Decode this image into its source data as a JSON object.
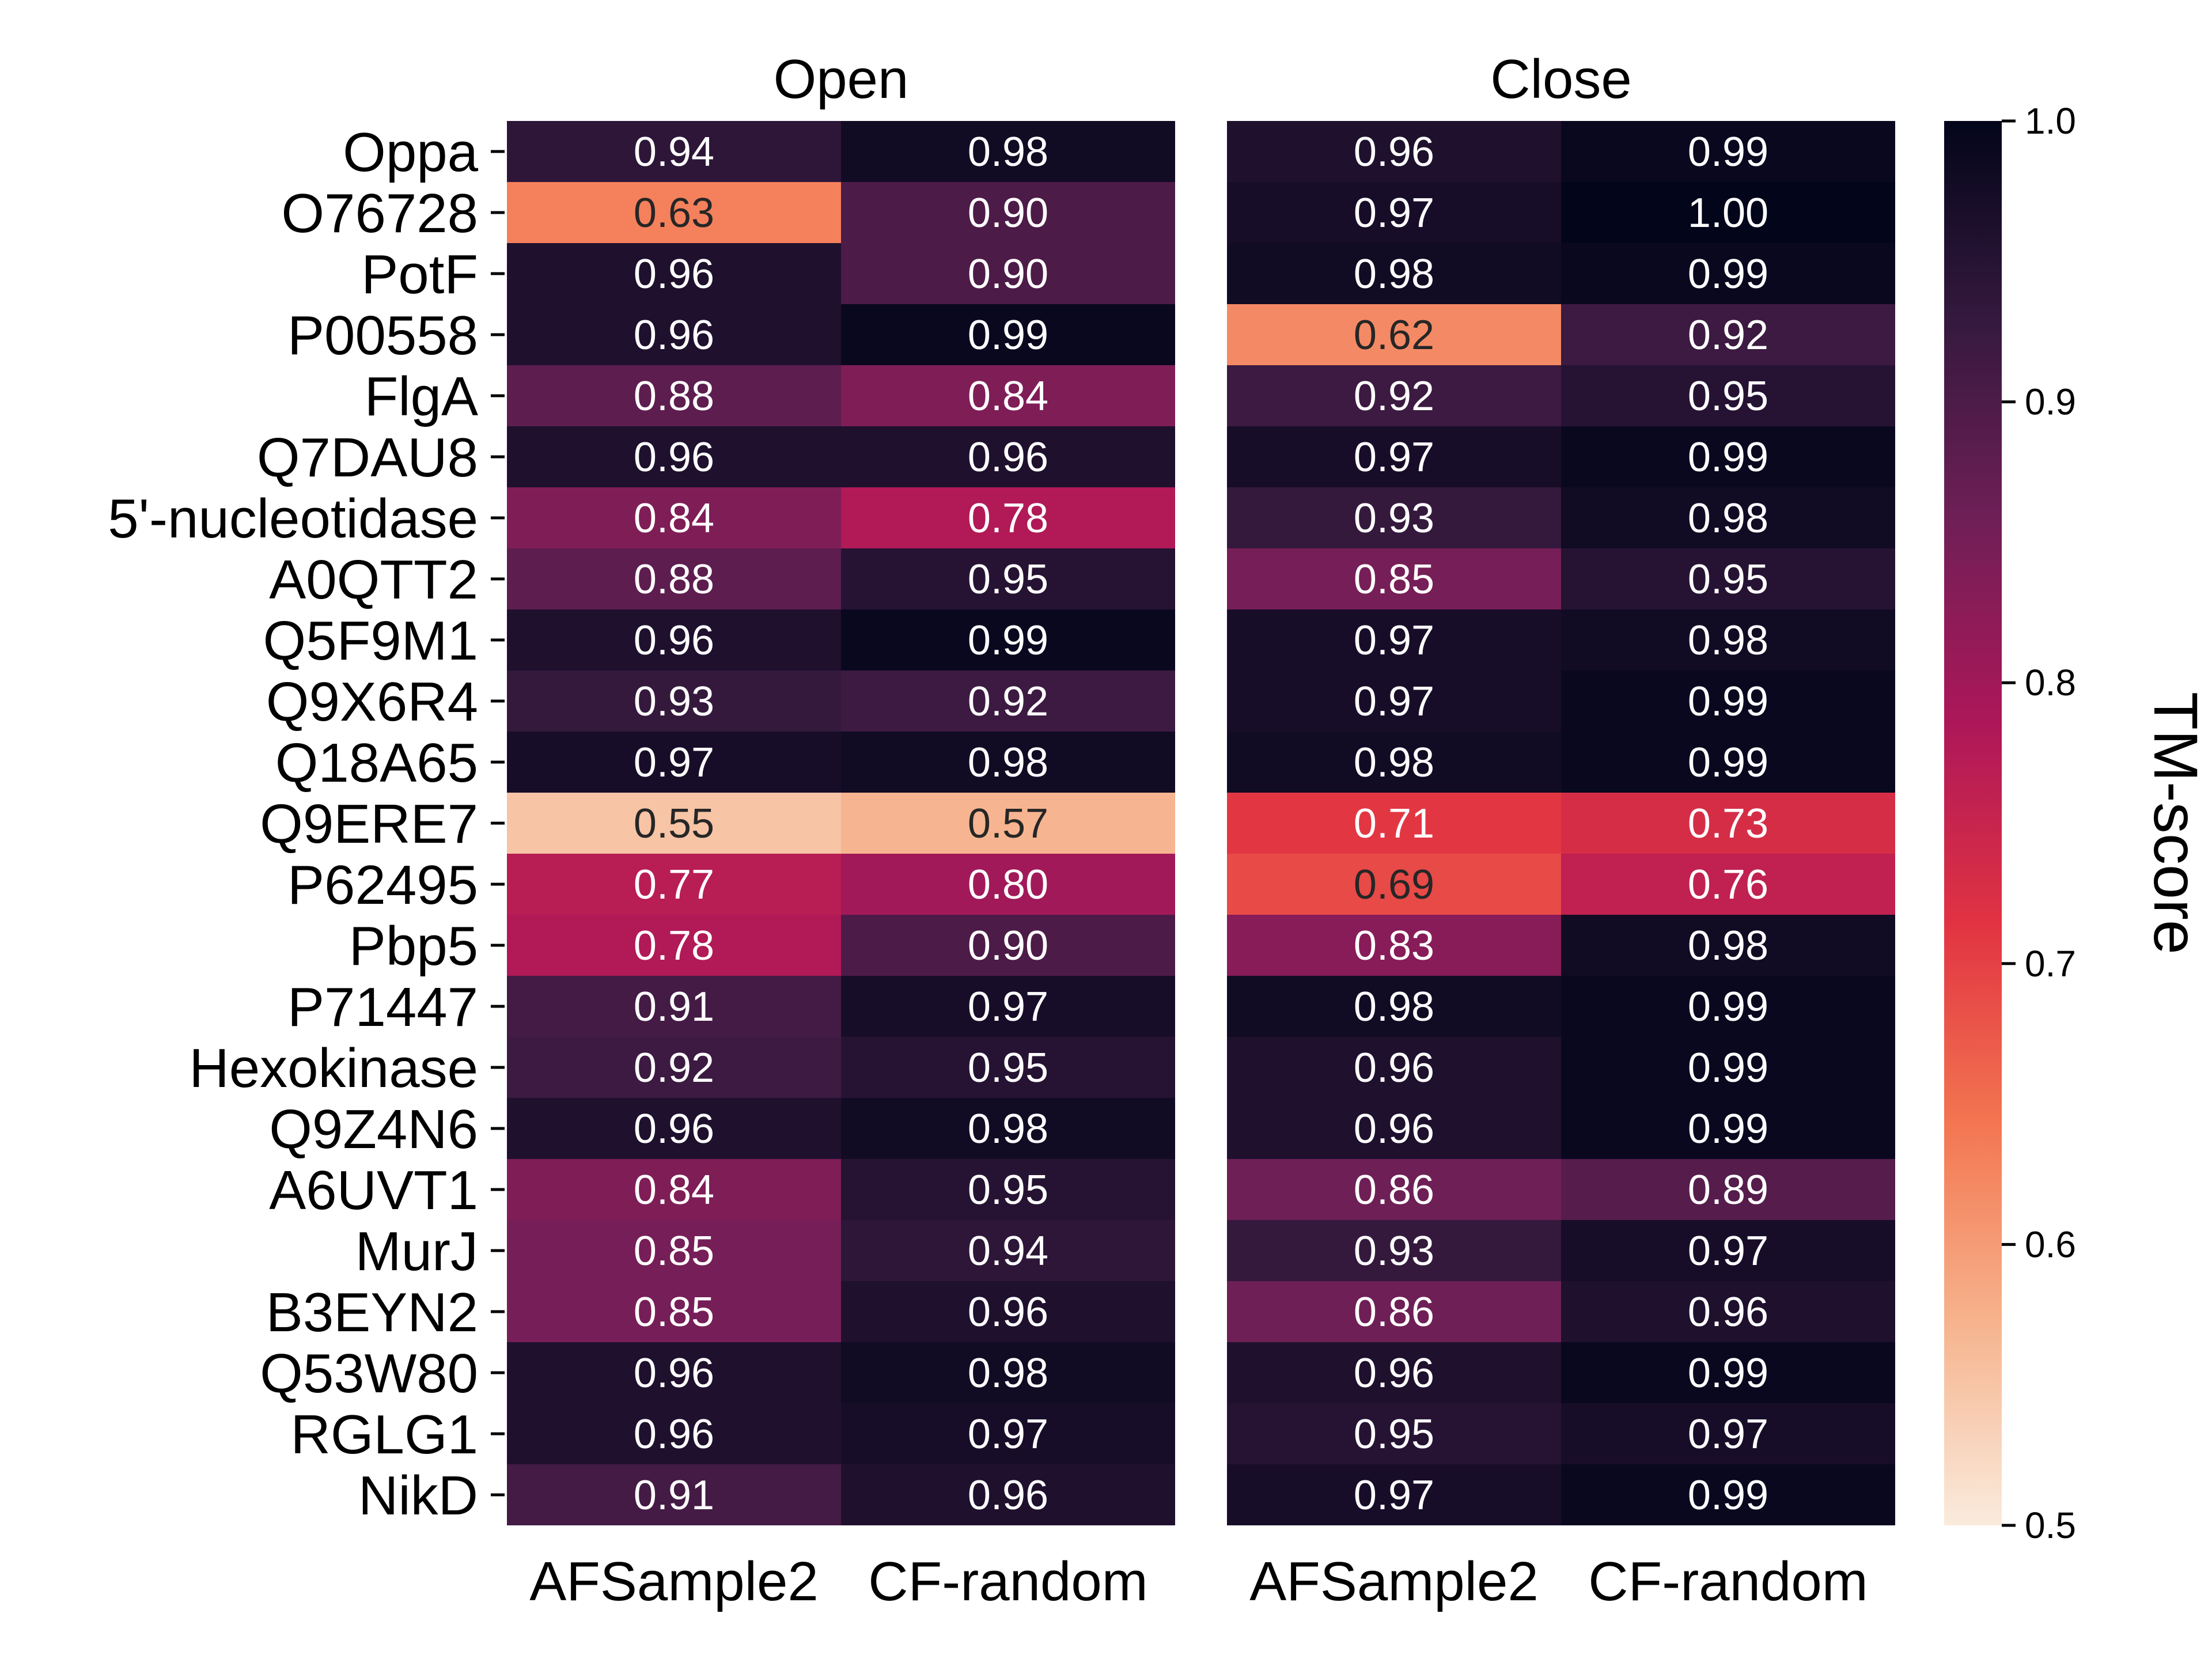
{
  "colors": {
    "colormap": "rocket_r",
    "cmap_stops": [
      "#faebdd",
      "#f6b48e",
      "#f37651",
      "#e13342",
      "#ad1759",
      "#701f57",
      "#35193e",
      "#03051a"
    ],
    "text_light": "#ffffff",
    "text_dark": "#262626"
  },
  "chart_data": {
    "type": "heatmap",
    "rows": [
      "Oppa",
      "O76728",
      "PotF",
      "P00558",
      "FlgA",
      "Q7DAU8",
      "5'-nucleotidase",
      "A0QTT2",
      "Q5F9M1",
      "Q9X6R4",
      "Q18A65",
      "Q9ERE7",
      "P62495",
      "Pbp5",
      "P71447",
      "Hexokinase",
      "Q9Z4N6",
      "A6UVT1",
      "MurJ",
      "B3EYN2",
      "Q53W80",
      "RGLG1",
      "NikD"
    ],
    "colorbar": {
      "label": "TM-score",
      "range": [
        0.5,
        1.0
      ],
      "ticks": [
        "0.5",
        "0.6",
        "0.7",
        "0.8",
        "0.9",
        "1.0"
      ]
    },
    "panels": [
      {
        "title": "Open",
        "columns": [
          "AFSample2",
          "CF-random"
        ],
        "values": [
          [
            0.94,
            0.98
          ],
          [
            0.63,
            0.9
          ],
          [
            0.96,
            0.9
          ],
          [
            0.96,
            0.99
          ],
          [
            0.88,
            0.84
          ],
          [
            0.96,
            0.96
          ],
          [
            0.84,
            0.78
          ],
          [
            0.88,
            0.95
          ],
          [
            0.96,
            0.99
          ],
          [
            0.93,
            0.92
          ],
          [
            0.97,
            0.98
          ],
          [
            0.55,
            0.57
          ],
          [
            0.77,
            0.8
          ],
          [
            0.78,
            0.9
          ],
          [
            0.91,
            0.97
          ],
          [
            0.92,
            0.95
          ],
          [
            0.96,
            0.98
          ],
          [
            0.84,
            0.95
          ],
          [
            0.85,
            0.94
          ],
          [
            0.85,
            0.96
          ],
          [
            0.96,
            0.98
          ],
          [
            0.96,
            0.97
          ],
          [
            0.91,
            0.96
          ]
        ]
      },
      {
        "title": "Close",
        "columns": [
          "AFSample2",
          "CF-random"
        ],
        "values": [
          [
            0.96,
            0.99
          ],
          [
            0.97,
            1.0
          ],
          [
            0.98,
            0.99
          ],
          [
            0.62,
            0.92
          ],
          [
            0.92,
            0.95
          ],
          [
            0.97,
            0.99
          ],
          [
            0.93,
            0.98
          ],
          [
            0.85,
            0.95
          ],
          [
            0.97,
            0.98
          ],
          [
            0.97,
            0.99
          ],
          [
            0.98,
            0.99
          ],
          [
            0.71,
            0.73
          ],
          [
            0.69,
            0.76
          ],
          [
            0.83,
            0.98
          ],
          [
            0.98,
            0.99
          ],
          [
            0.96,
            0.99
          ],
          [
            0.96,
            0.99
          ],
          [
            0.86,
            0.89
          ],
          [
            0.93,
            0.97
          ],
          [
            0.86,
            0.96
          ],
          [
            0.96,
            0.99
          ],
          [
            0.95,
            0.97
          ],
          [
            0.97,
            0.99
          ]
        ]
      }
    ]
  }
}
